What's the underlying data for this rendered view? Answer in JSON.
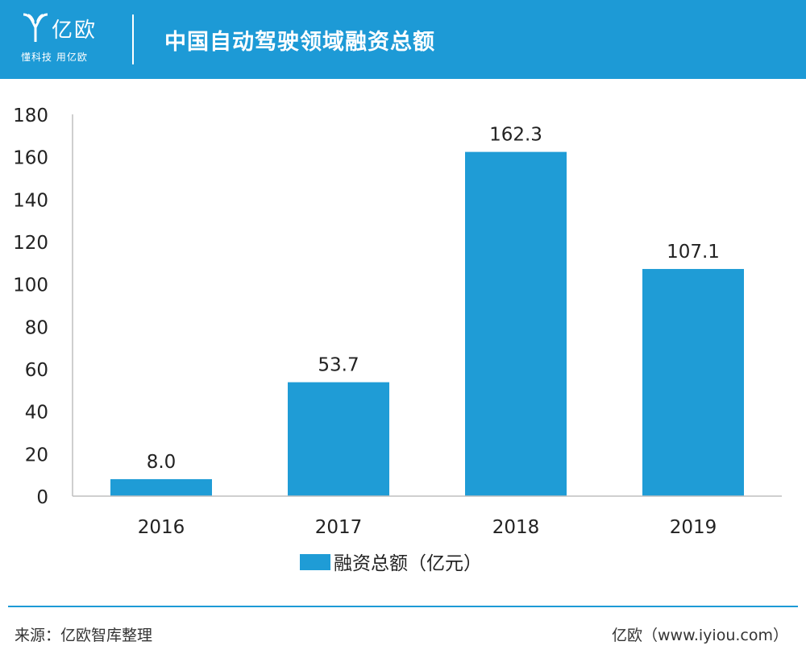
{
  "header": {
    "logo_name": "亿欧",
    "logo_slogan": "懂科技 用亿欧",
    "title": "中国自动驾驶领域融资总额"
  },
  "colors": {
    "brand": "#1d9ad6",
    "bar": "#1f9cd6",
    "axis": "#bfbfbf"
  },
  "chart_data": {
    "type": "bar",
    "title": "中国自动驾驶领域融资总额",
    "categories": [
      "2016",
      "2017",
      "2018",
      "2019"
    ],
    "series": [
      {
        "name": "融资总额（亿元）",
        "values": [
          8.0,
          53.7,
          162.3,
          107.1
        ]
      }
    ],
    "data_labels": [
      "8.0",
      "53.7",
      "162.3",
      "107.1"
    ],
    "ylim": [
      0,
      180
    ],
    "yticks": [
      0,
      20,
      40,
      60,
      80,
      100,
      120,
      140,
      160,
      180
    ],
    "xlabel": "",
    "ylabel": "",
    "grid": false,
    "legend_position": "bottom-center"
  },
  "footer": {
    "source": "来源：亿欧智库整理",
    "site": "亿欧（www.iyiou.com）"
  }
}
